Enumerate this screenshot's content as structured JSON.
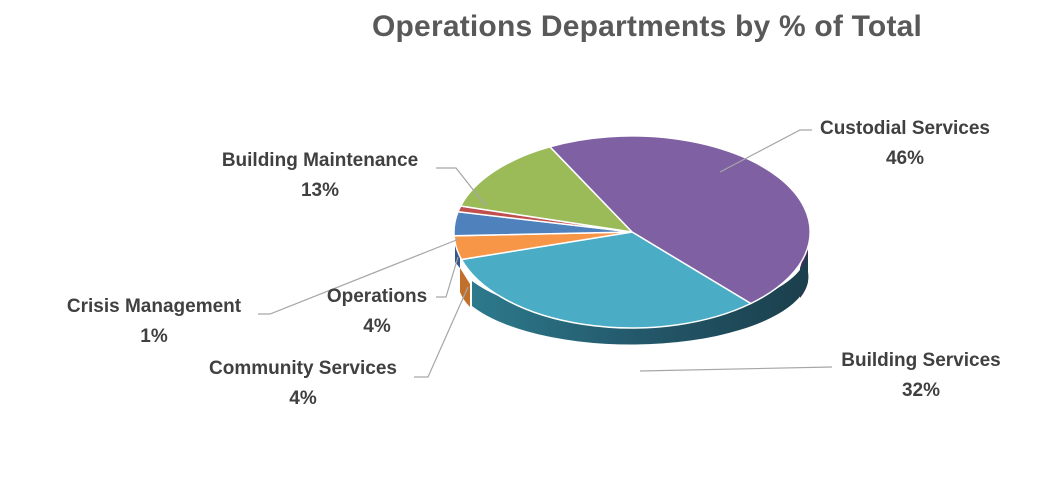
{
  "chart_data": {
    "type": "pie",
    "title": "Operations Departments by % of Total",
    "slices": [
      {
        "name": "Custodial Services",
        "value": 46,
        "label": "46%",
        "color": "#7F60A2"
      },
      {
        "name": "Building Services",
        "value": 32,
        "label": "32%",
        "color": "#4BACC6"
      },
      {
        "name": "Community Services",
        "value": 4,
        "label": "4%",
        "color": "#F79646"
      },
      {
        "name": "Operations",
        "value": 4,
        "label": "4%",
        "color": "#4F81BD"
      },
      {
        "name": "Crisis Management",
        "value": 1,
        "label": "1%",
        "color": "#C0504D"
      },
      {
        "name": "Building Maintenance",
        "value": 13,
        "label": "13%",
        "color": "#9BBB59"
      }
    ],
    "legend": "none",
    "style": "3d-exploded-pie"
  }
}
